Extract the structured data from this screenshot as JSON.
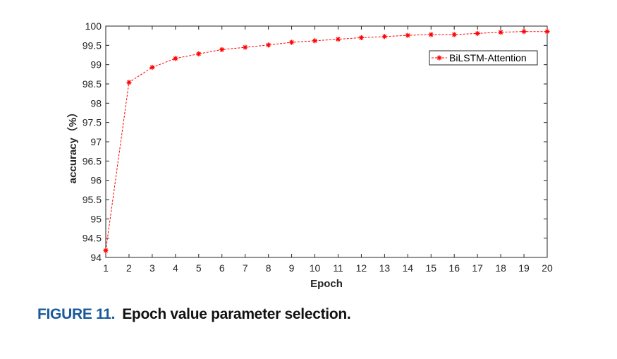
{
  "chart_data": {
    "type": "line",
    "xlabel": "Epoch",
    "ylabel": "accuracy（%）",
    "xlim": [
      1,
      20
    ],
    "ylim": [
      94,
      100
    ],
    "xticks": [
      1,
      2,
      3,
      4,
      5,
      6,
      7,
      8,
      9,
      10,
      11,
      12,
      13,
      14,
      15,
      16,
      17,
      18,
      19,
      20
    ],
    "yticks": [
      94,
      94.5,
      95,
      95.5,
      96,
      96.5,
      97,
      97.5,
      98,
      98.5,
      99,
      99.5,
      100
    ],
    "ytick_labels": [
      "94",
      "94.5",
      "95",
      "95.5",
      "96",
      "96.5",
      "97",
      "97.5",
      "98",
      "98.5",
      "99",
      "99.5",
      "100"
    ],
    "grid": false,
    "legend_position": "top-right",
    "series": [
      {
        "name": "BiLSTM-Attention",
        "color": "#ff0000",
        "line_style": "dashed",
        "marker": "asterisk",
        "x": [
          1,
          2,
          3,
          4,
          5,
          6,
          7,
          8,
          9,
          10,
          11,
          12,
          13,
          14,
          15,
          16,
          17,
          18,
          19,
          20
        ],
        "y": [
          94.18,
          98.54,
          98.93,
          99.16,
          99.28,
          99.39,
          99.45,
          99.51,
          99.58,
          99.62,
          99.66,
          99.7,
          99.73,
          99.76,
          99.78,
          99.78,
          99.81,
          99.84,
          99.86,
          99.86
        ]
      }
    ]
  },
  "caption": {
    "number": "FIGURE 11.",
    "text": "Epoch value parameter selection."
  }
}
